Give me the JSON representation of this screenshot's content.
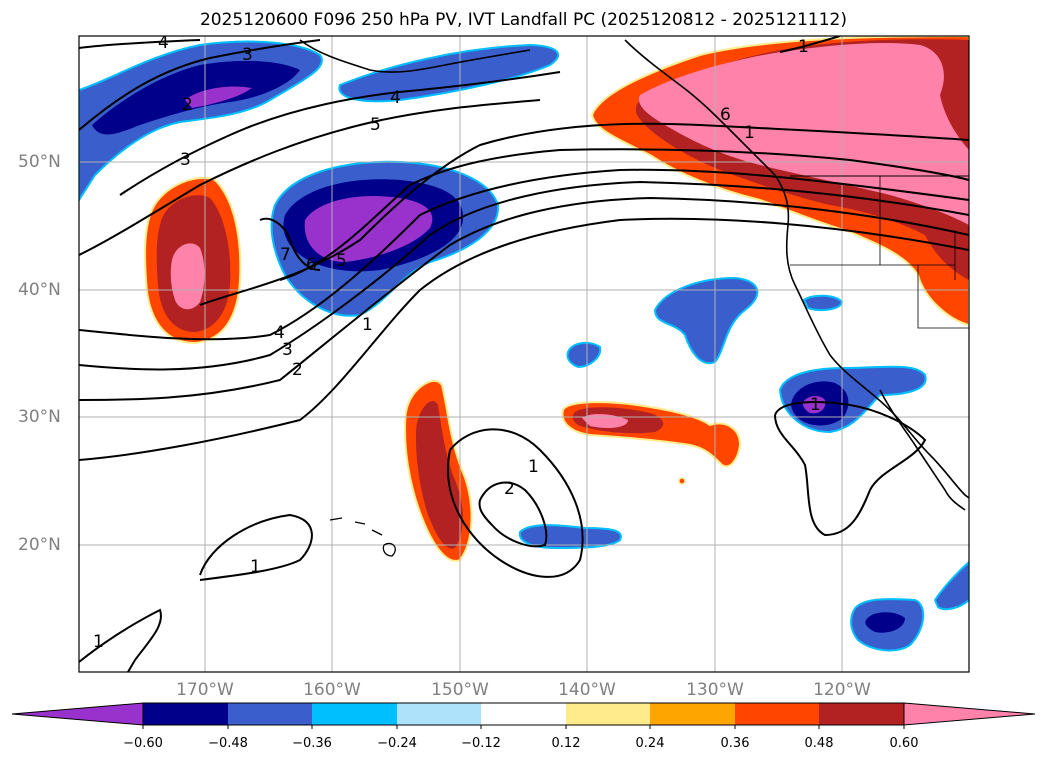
{
  "title": "2025120600 F096 250 hPa PV, IVT Landfall PC (2025120812 - 2025121112)",
  "lat_labels": [
    "50°N",
    "40°N",
    "30°N",
    "20°N"
  ],
  "lon_labels": [
    "170°W",
    "160°W",
    "150°W",
    "140°W",
    "130°W",
    "120°W"
  ],
  "colorbar": {
    "ticks": [
      "−0.60",
      "−0.48",
      "−0.36",
      "−0.24",
      "−0.12",
      "0.12",
      "0.24",
      "0.36",
      "0.48",
      "0.60"
    ],
    "colors": [
      "#9932cc",
      "#00008b",
      "#3a5fcd",
      "#00bfff",
      "#ade2fa",
      "#ffffff",
      "#ffeb8b",
      "#ffa500",
      "#ff4500",
      "#b22222",
      "#ff82ab"
    ]
  },
  "contour_labels": [
    "4",
    "3",
    "2",
    "3",
    "4",
    "5",
    "7",
    "6",
    "5",
    "4",
    "3",
    "2",
    "1",
    "1",
    "6",
    "1",
    "1",
    "2",
    "1",
    "1",
    "1"
  ]
}
